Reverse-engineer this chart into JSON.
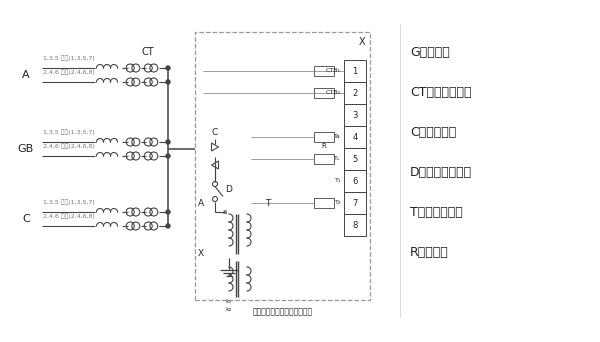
{
  "bg_color": "#ffffff",
  "line_color": "#444444",
  "text_color": "#222222",
  "gray_color": "#777777",
  "figsize": [
    6.0,
    3.42
  ],
  "dpi": 100,
  "legend_items": [
    "G－发电机",
    "CT－电流互感器",
    "C－电力电缆",
    "D－单极隔离开关",
    "T－接地变压器",
    "R－电阻器"
  ],
  "note": "注：虚线框内为接地装置设备",
  "branch_top": "1,3,5 分支(1,3,5,7)",
  "branch_bot": "2,4,6 分支(2,4,6,8)",
  "ct_label": "CT",
  "x_label": "X"
}
